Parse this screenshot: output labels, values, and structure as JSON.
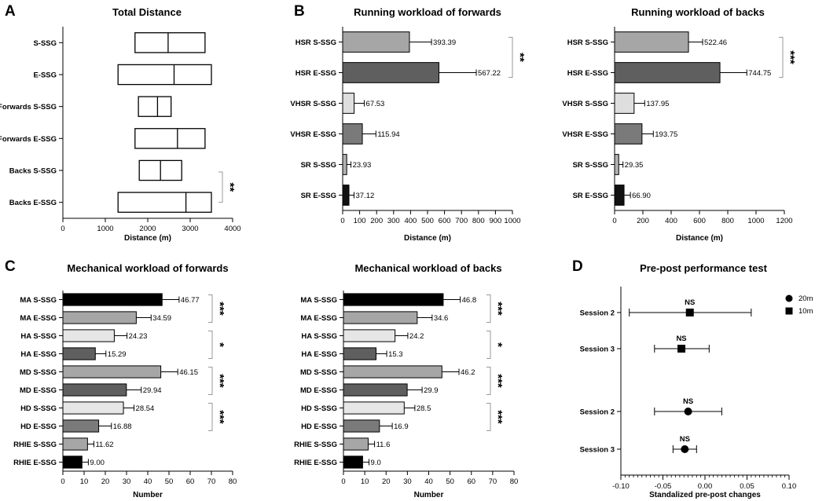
{
  "panel_labels": [
    "A",
    "B",
    "C",
    "D"
  ],
  "chart_data": [
    {
      "id": "total_distance",
      "type": "box",
      "title": "Total Distance",
      "xlabel": "Distance (m)",
      "xlim": [
        0,
        4000
      ],
      "ticks": [
        0,
        1000,
        2000,
        3000,
        4000
      ],
      "categories": [
        "S-SSG",
        "E-SSG",
        "Forwards S-SSG",
        "Forwards E-SSG",
        "Backs S-SSG",
        "Backs E-SSG"
      ],
      "boxes": [
        {
          "q1": 1700,
          "median": 2480,
          "q3": 3350
        },
        {
          "q1": 1300,
          "median": 2620,
          "q3": 3500
        },
        {
          "q1": 1780,
          "median": 2230,
          "q3": 2550
        },
        {
          "q1": 1700,
          "median": 2700,
          "q3": 3350
        },
        {
          "q1": 1800,
          "median": 2300,
          "q3": 2800
        },
        {
          "q1": 1300,
          "median": 2900,
          "q3": 3500
        }
      ],
      "significance": [
        {
          "from": 4,
          "to": 5,
          "label": "**"
        }
      ]
    },
    {
      "id": "running_forwards",
      "type": "bar",
      "orientation": "horizontal",
      "title": "Running workload of forwards",
      "xlabel": "Distance (m)",
      "xlim": [
        0,
        1000
      ],
      "ticks": [
        0,
        100,
        200,
        300,
        400,
        500,
        600,
        700,
        800,
        900,
        1000
      ],
      "categories": [
        "HSR S-SSG",
        "HSR E-SSG",
        "VHSR S-SSG",
        "VHSR E-SSG",
        "SR S-SSG",
        "SR E-SSG"
      ],
      "values": [
        393.39,
        567.22,
        67.53,
        115.94,
        23.93,
        37.12
      ],
      "errors": [
        130,
        220,
        60,
        80,
        25,
        30
      ],
      "value_labels": [
        "393.39",
        "567.22",
        "67.53",
        "115.94",
        "23.93",
        "37.12"
      ],
      "colors": [
        "#a6a6a6",
        "#5f5f5f",
        "#dedede",
        "#7a7a7a",
        "#b2b2b2",
        "#111111"
      ],
      "significance": [
        {
          "from": 0,
          "to": 1,
          "label": "**"
        }
      ]
    },
    {
      "id": "running_backs",
      "type": "bar",
      "orientation": "horizontal",
      "title": "Running workload of backs",
      "xlabel": "Distance (m)",
      "xlim": [
        0,
        1200
      ],
      "ticks": [
        0,
        200,
        400,
        600,
        800,
        1000,
        1200
      ],
      "categories": [
        "HSR S-SSG",
        "HSR E-SSG",
        "VHSR S-SSG",
        "VHSR E-SSG",
        "SR S-SSG",
        "SR E-SSG"
      ],
      "values": [
        522.46,
        744.75,
        137.95,
        193.75,
        29.35,
        66.9
      ],
      "errors": [
        100,
        190,
        75,
        80,
        30,
        45
      ],
      "value_labels": [
        "522.46",
        "744.75",
        "137.95",
        "193.75",
        "29.35",
        "66.90"
      ],
      "colors": [
        "#a6a6a6",
        "#5f5f5f",
        "#dedede",
        "#7a7a7a",
        "#b2b2b2",
        "#111111"
      ],
      "significance": [
        {
          "from": 0,
          "to": 1,
          "label": "***"
        }
      ]
    },
    {
      "id": "mech_forwards",
      "type": "bar",
      "orientation": "horizontal",
      "title": "Mechanical workload of forwards",
      "xlabel": "Number",
      "xlim": [
        0,
        80
      ],
      "ticks": [
        0,
        10,
        20,
        30,
        40,
        50,
        60,
        70,
        80
      ],
      "categories": [
        "MA S-SSG",
        "MA E-SSG",
        "HA S-SSG",
        "HA E-SSG",
        "MD S-SSG",
        "MD E-SSG",
        "HD S-SSG",
        "HD E-SSG",
        "RHIE S-SSG",
        "RHIE E-SSG"
      ],
      "values": [
        46.77,
        34.59,
        24.23,
        15.29,
        46.15,
        29.94,
        28.54,
        16.88,
        11.62,
        9.0
      ],
      "errors": [
        8,
        7,
        6,
        5,
        8,
        7,
        5,
        6,
        3,
        3
      ],
      "value_labels": [
        "46.77",
        "34.59",
        "24.23",
        "15.29",
        "46.15",
        "29.94",
        "28.54",
        "16.88",
        "11.62",
        "9.00"
      ],
      "colors": [
        "#000000",
        "#a6a6a6",
        "#e6e6e6",
        "#5f5f5f",
        "#a6a6a6",
        "#5f5f5f",
        "#e6e6e6",
        "#7a7a7a",
        "#a6a6a6",
        "#000000"
      ],
      "significance": [
        {
          "from": 0,
          "to": 1,
          "label": "***"
        },
        {
          "from": 2,
          "to": 3,
          "label": "*"
        },
        {
          "from": 4,
          "to": 5,
          "label": "***"
        },
        {
          "from": 6,
          "to": 7,
          "label": "***"
        }
      ]
    },
    {
      "id": "mech_backs",
      "type": "bar",
      "orientation": "horizontal",
      "title": "Mechanical workload of backs",
      "xlabel": "Number",
      "xlim": [
        0,
        80
      ],
      "ticks": [
        0,
        10,
        20,
        30,
        40,
        50,
        60,
        70,
        80
      ],
      "categories": [
        "MA S-SSG",
        "MA E-SSG",
        "HA S-SSG",
        "HA E-SSG",
        "MD S-SSG",
        "MD E-SSG",
        "HD S-SSG",
        "HD E-SSG",
        "RHIE S-SSG",
        "RHIE E-SSG"
      ],
      "values": [
        46.8,
        34.6,
        24.2,
        15.3,
        46.2,
        29.9,
        28.5,
        16.9,
        11.6,
        9.0
      ],
      "errors": [
        8,
        7,
        6,
        5,
        8,
        7,
        5,
        6,
        3,
        3
      ],
      "value_labels": [
        "46.8",
        "34.6",
        "24.2",
        "15.3",
        "46.2",
        "29.9",
        "28.5",
        "16.9",
        "11.6",
        "9.0"
      ],
      "colors": [
        "#000000",
        "#a6a6a6",
        "#e6e6e6",
        "#5f5f5f",
        "#a6a6a6",
        "#5f5f5f",
        "#e6e6e6",
        "#7a7a7a",
        "#a6a6a6",
        "#000000"
      ],
      "significance": [
        {
          "from": 0,
          "to": 1,
          "label": "***"
        },
        {
          "from": 2,
          "to": 3,
          "label": "*"
        },
        {
          "from": 4,
          "to": 5,
          "label": "***"
        },
        {
          "from": 6,
          "to": 7,
          "label": "***"
        }
      ]
    },
    {
      "id": "prepost",
      "type": "scatter",
      "title": "Pre-post performance test",
      "xlabel": "Standalized pre-post changes",
      "xlim": [
        -0.1,
        0.1
      ],
      "ticks": [
        -0.1,
        -0.05,
        0.0,
        0.05,
        0.1
      ],
      "tick_labels": [
        "-0.10",
        "-0.05",
        "0.00",
        "0.05",
        "0.10"
      ],
      "categories": [
        "Session 2",
        "Session 3",
        "Session 2",
        "Session 3"
      ],
      "points": [
        {
          "series": "10m",
          "label": "NS",
          "mean": -0.018,
          "low": -0.09,
          "high": 0.055
        },
        {
          "series": "10m",
          "label": "NS",
          "mean": -0.028,
          "low": -0.06,
          "high": 0.005
        },
        {
          "series": "20m",
          "label": "NS",
          "mean": -0.02,
          "low": -0.06,
          "high": 0.02
        },
        {
          "series": "20m",
          "label": "NS",
          "mean": -0.024,
          "low": -0.038,
          "high": -0.01
        }
      ],
      "legend": [
        {
          "name": "20m",
          "marker": "circle"
        },
        {
          "name": "10m",
          "marker": "square"
        }
      ]
    }
  ]
}
